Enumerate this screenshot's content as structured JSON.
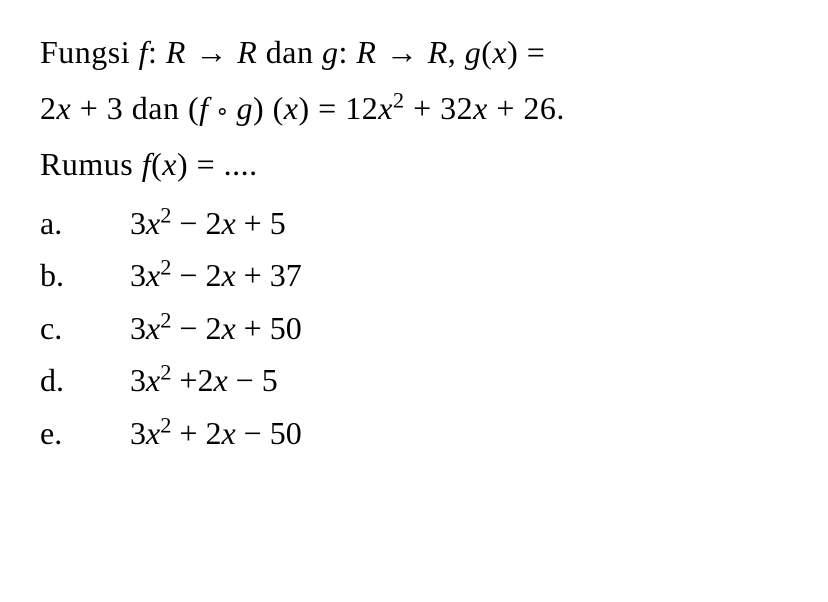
{
  "question": {
    "line1_prefix": "Fungsi ",
    "f_label": "f",
    "colon1": ": ",
    "R1": "R",
    "arrow": " → ",
    "R2": "R",
    "dan1": " dan ",
    "g_label": "g",
    "colon2": ": ",
    "R3": "R",
    "R4": "R",
    "comma": ", ",
    "gx_g": "g",
    "gx_open": "(",
    "gx_x": "x",
    "gx_close": ") = ",
    "line2_expr1_coef": "2",
    "line2_expr1_x": "x",
    "line2_expr1_rest": " + 3 dan (",
    "line2_f": "f",
    "line2_compose": " ∘ ",
    "line2_g": "g",
    "line2_paren": ") (",
    "line2_x": "x",
    "line2_eq": ") = 12",
    "line2_x2": "x",
    "line2_sq": "2",
    "line2_plus": " + 32",
    "line2_x3": "x",
    "line2_end": " + 26.",
    "line3_rumus": "Rumus ",
    "line3_f": "f",
    "line3_open": "(",
    "line3_x": "x",
    "line3_rest": ") = ...."
  },
  "options": [
    {
      "letter": "a.",
      "coef1": "3",
      "var1": "x",
      "exp1": "2",
      "op1": " − 2",
      "var2": "x",
      "rest": " + 5"
    },
    {
      "letter": "b.",
      "coef1": "3",
      "var1": "x",
      "exp1": "2",
      "op1": " − 2",
      "var2": "x",
      "rest": " + 37"
    },
    {
      "letter": "c.",
      "coef1": "3",
      "var1": "x",
      "exp1": "2",
      "op1": " − 2",
      "var2": "x",
      "rest": " + 50"
    },
    {
      "letter": "d.",
      "coef1": "3",
      "var1": "x",
      "exp1": "2",
      "op1": " +2",
      "var2": "x",
      "rest": " − 5"
    },
    {
      "letter": "e.",
      "coef1": "3",
      "var1": "x",
      "exp1": "2",
      "op1": " + 2",
      "var2": "x",
      "rest": " − 50"
    }
  ],
  "colors": {
    "text": "#000000",
    "background": "#ffffff"
  },
  "typography": {
    "fontFamily": "Times New Roman",
    "fontSize": 32,
    "lineHeight": 1.5
  }
}
